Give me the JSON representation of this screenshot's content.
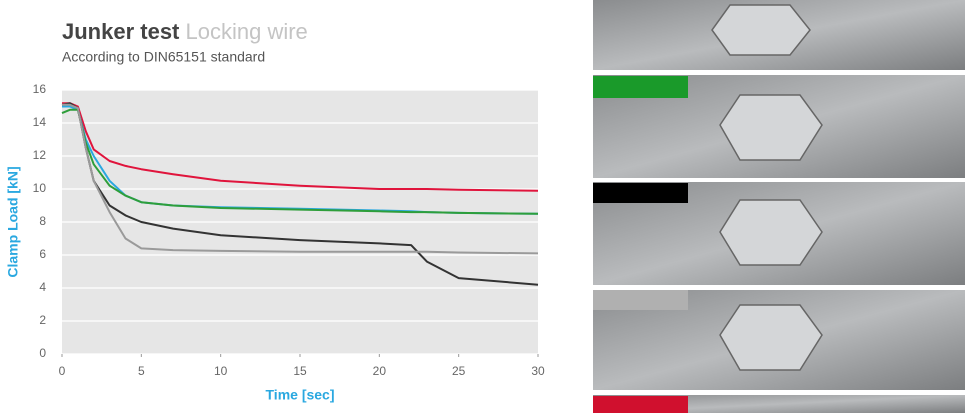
{
  "chart_data": {
    "type": "line",
    "title": "Junker test",
    "title_suffix": "Locking wire",
    "subtitle": "According to DIN65151 standard",
    "x_label": "Time [sec]",
    "y_label": "Clamp Load [kN]",
    "x": [
      0,
      0.5,
      1,
      1.5,
      2,
      3,
      4,
      5,
      7,
      10,
      15,
      20,
      22,
      23,
      25,
      30
    ],
    "series": [
      {
        "color": "#e0143c",
        "values": [
          15.2,
          15.2,
          15,
          13.5,
          12.4,
          11.7,
          11.4,
          11.2,
          10.9,
          10.5,
          10.2,
          10,
          10,
          10,
          9.95,
          9.9
        ]
      },
      {
        "color": "#2aa8e0",
        "values": [
          15,
          15,
          14.8,
          13,
          12,
          10.5,
          9.6,
          9.2,
          9,
          8.9,
          8.8,
          8.7,
          8.65,
          8.6,
          8.55,
          8.5
        ]
      },
      {
        "color": "#2e9e3a",
        "values": [
          14.6,
          14.8,
          14.8,
          12.8,
          11.5,
          10.2,
          9.6,
          9.2,
          9,
          8.85,
          8.75,
          8.65,
          8.6,
          8.6,
          8.55,
          8.5
        ]
      },
      {
        "color": "#333333",
        "values": [
          15.1,
          15.2,
          14.9,
          12.5,
          10.5,
          9,
          8.4,
          8,
          7.6,
          7.2,
          6.9,
          6.7,
          6.6,
          5.6,
          4.6,
          4.2
        ]
      },
      {
        "color": "#9a9a9a",
        "values": [
          15.1,
          15.1,
          14.9,
          12.5,
          10.5,
          8.6,
          7,
          6.4,
          6.3,
          6.25,
          6.2,
          6.2,
          6.2,
          6.2,
          6.15,
          6.1
        ]
      }
    ],
    "xlim": [
      0,
      30
    ],
    "xticks": [
      0,
      5,
      10,
      15,
      20,
      25,
      30
    ],
    "ylim": [
      0,
      16
    ],
    "yticks": [
      0,
      2,
      4,
      6,
      8,
      10,
      12,
      14,
      16
    ],
    "grid": true
  }
}
